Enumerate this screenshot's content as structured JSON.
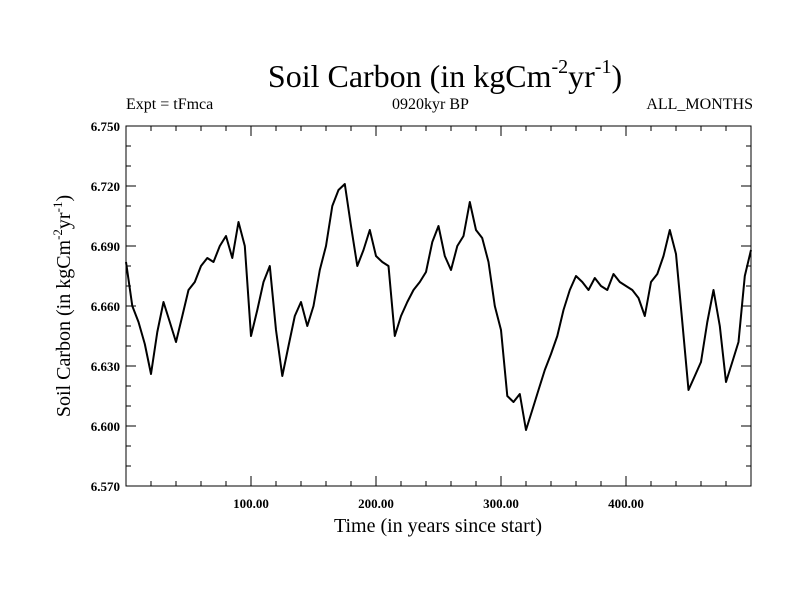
{
  "chart_data": {
    "type": "line",
    "title": "Soil Carbon (in kgCm",
    "title_exp1": "-2",
    "title_mid": "yr",
    "title_exp2": "-1",
    "title_end": ")",
    "subtitle_left": "Expt = tFmca",
    "subtitle_center": "0920kyr BP",
    "subtitle_right": "ALL_MONTHS",
    "xlabel": "Time (in years since start)",
    "ylabel": "Soil Carbon (in kgCm",
    "ylabel_exp1": "-2",
    "ylabel_mid": "yr",
    "ylabel_exp2": "-1",
    "ylabel_end": ")",
    "xlim": [
      0,
      500
    ],
    "ylim": [
      6.57,
      6.75
    ],
    "x_ticks": [
      100,
      200,
      300,
      400
    ],
    "x_tick_labels": [
      "100.00",
      "200.00",
      "300.00",
      "400.00"
    ],
    "y_ticks": [
      6.57,
      6.6,
      6.63,
      6.66,
      6.69,
      6.72,
      6.75
    ],
    "y_tick_labels": [
      "6.570",
      "6.600",
      "6.630",
      "6.660",
      "6.690",
      "6.720",
      "6.750"
    ],
    "series": [
      {
        "name": "Soil Carbon",
        "color": "#000000",
        "x": [
          0,
          5,
          10,
          15,
          20,
          25,
          30,
          35,
          40,
          45,
          50,
          55,
          60,
          65,
          70,
          75,
          80,
          85,
          90,
          95,
          100,
          105,
          110,
          115,
          120,
          125,
          130,
          135,
          140,
          145,
          150,
          155,
          160,
          165,
          170,
          175,
          180,
          185,
          190,
          195,
          200,
          205,
          210,
          215,
          220,
          225,
          230,
          235,
          240,
          245,
          250,
          255,
          260,
          265,
          270,
          275,
          280,
          285,
          290,
          295,
          300,
          305,
          310,
          315,
          320,
          325,
          330,
          335,
          340,
          345,
          350,
          355,
          360,
          365,
          370,
          375,
          380,
          385,
          390,
          395,
          400,
          405,
          410,
          415,
          420,
          425,
          430,
          435,
          440,
          445,
          450,
          455,
          460,
          465,
          470,
          475,
          480,
          485,
          490,
          495,
          500
        ],
        "values": [
          6.682,
          6.66,
          6.652,
          6.641,
          6.626,
          6.647,
          6.662,
          6.652,
          6.642,
          6.655,
          6.668,
          6.672,
          6.68,
          6.684,
          6.682,
          6.69,
          6.695,
          6.684,
          6.702,
          6.69,
          6.645,
          6.658,
          6.672,
          6.68,
          6.648,
          6.625,
          6.64,
          6.655,
          6.662,
          6.65,
          6.66,
          6.678,
          6.69,
          6.71,
          6.718,
          6.721,
          6.7,
          6.68,
          6.688,
          6.698,
          6.685,
          6.682,
          6.68,
          6.645,
          6.655,
          6.662,
          6.668,
          6.672,
          6.677,
          6.692,
          6.7,
          6.685,
          6.678,
          6.69,
          6.695,
          6.712,
          6.698,
          6.694,
          6.682,
          6.66,
          6.648,
          6.615,
          6.612,
          6.616,
          6.598,
          6.608,
          6.618,
          6.628,
          6.636,
          6.645,
          6.658,
          6.668,
          6.675,
          6.672,
          6.668,
          6.674,
          6.67,
          6.668,
          6.676,
          6.672,
          6.67,
          6.668,
          6.664,
          6.655,
          6.672,
          6.676,
          6.685,
          6.698,
          6.686,
          6.652,
          6.618,
          6.625,
          6.632,
          6.652,
          6.668,
          6.65,
          6.622,
          6.632,
          6.642,
          6.675,
          6.688
        ]
      }
    ]
  }
}
